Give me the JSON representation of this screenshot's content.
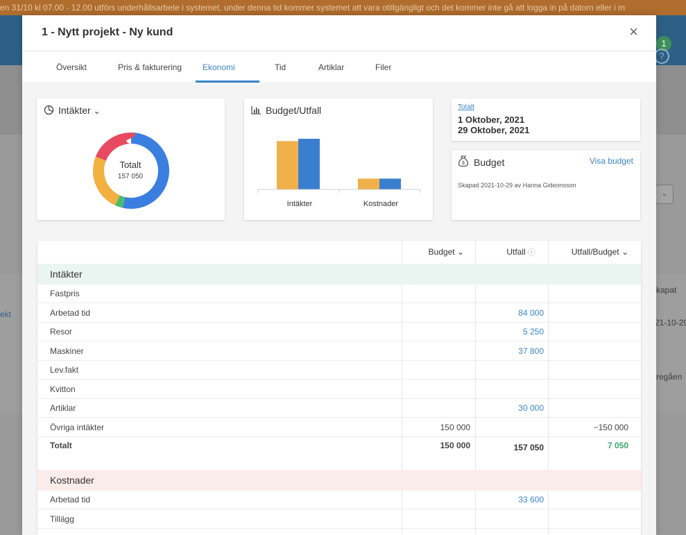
{
  "background": {
    "banner_text": "en 31/10 kl 07.00 - 12.00 utförs underhållsarbete i systemet, under denna tid kommer systemet att vara otillgängligt och det kommer inte gå att logga in på datorn eller i m",
    "badge_count": "1",
    "help_icon": "question-icon",
    "table_header_fragment": "kapat",
    "row_link_fragment": "ekt",
    "row_date_fragment": "21-10-29",
    "row_text_fragment": "regåen"
  },
  "modal": {
    "title": "1 - Nytt projekt - Ny kund",
    "close_icon": "×"
  },
  "tabs": [
    {
      "label": "Översikt",
      "active": false
    },
    {
      "label": "Pris & fakturering",
      "active": false
    },
    {
      "label": "Ekonomi",
      "active": true
    },
    {
      "label": "Tid",
      "active": false
    },
    {
      "label": "Artiklar",
      "active": false
    },
    {
      "label": "Filer",
      "active": false
    }
  ],
  "income_card": {
    "title": "Intäkter",
    "chevron": "⌄",
    "center_title": "Totalt",
    "center_value": "157 050"
  },
  "budget_card": {
    "title": "Budget/Utfall"
  },
  "date_card": {
    "link": "Totalt",
    "start": "1 Oktober, 2021",
    "end": "29 Oktober, 2021"
  },
  "budget_info": {
    "title": "Budget",
    "link": "Visa budget",
    "created": "Skapad 2021-10-29 av Hanna Gideonsson"
  },
  "table": {
    "columns": [
      "Budget",
      "Utfall",
      "Utfall/Budget"
    ],
    "income_section": "Intäkter",
    "income_rows": [
      {
        "label": "Fastpris",
        "budget": "",
        "actual": "",
        "ratio": ""
      },
      {
        "label": "Arbetad tid",
        "budget": "",
        "actual": "84 000",
        "ratio": ""
      },
      {
        "label": "Resor",
        "budget": "",
        "actual": "5 250",
        "ratio": ""
      },
      {
        "label": "Maskiner",
        "budget": "",
        "actual": "37 800",
        "ratio": ""
      },
      {
        "label": "Lev.fakt",
        "budget": "",
        "actual": "",
        "ratio": ""
      },
      {
        "label": "Kvitton",
        "budget": "",
        "actual": "",
        "ratio": ""
      },
      {
        "label": "Artiklar",
        "budget": "",
        "actual": "30 000",
        "ratio": ""
      },
      {
        "label": "Övriga intäkter",
        "budget": "150 000",
        "actual": "",
        "ratio": "−150 000"
      }
    ],
    "income_total": {
      "label": "Totalt",
      "budget": "150 000",
      "actual": "157 050",
      "ratio": "7 050"
    },
    "cost_section": "Kostnader",
    "cost_rows": [
      {
        "label": "Arbetad tid",
        "budget": "",
        "actual": "33 600",
        "ratio": ""
      },
      {
        "label": "Tillägg",
        "budget": "",
        "actual": "",
        "ratio": ""
      }
    ]
  },
  "colors": {
    "accent": "#3a86c8",
    "green": "#3aa86b",
    "income_bg": "#eaf5f1",
    "cost_bg": "#fbecec",
    "bar_budget": "#f2b04a",
    "bar_actual": "#3a7fcf",
    "donut_blue": "#3a7fe0",
    "donut_green": "#4cbb6c",
    "donut_orange": "#f2b03e",
    "donut_red": "#e84a5f"
  },
  "chart_data": [
    {
      "type": "pie",
      "title": "Intäkter",
      "categories": [
        "",
        "",
        "",
        ""
      ],
      "values": [
        84000,
        5250,
        37800,
        30000
      ]
    },
    {
      "type": "bar",
      "title": "Budget/Utfall",
      "categories": [
        "Intäkter",
        "Kostnader"
      ],
      "series": [
        {
          "values": [
            150000,
            33600
          ]
        },
        {
          "values": [
            157050,
            33600
          ]
        }
      ]
    }
  ]
}
